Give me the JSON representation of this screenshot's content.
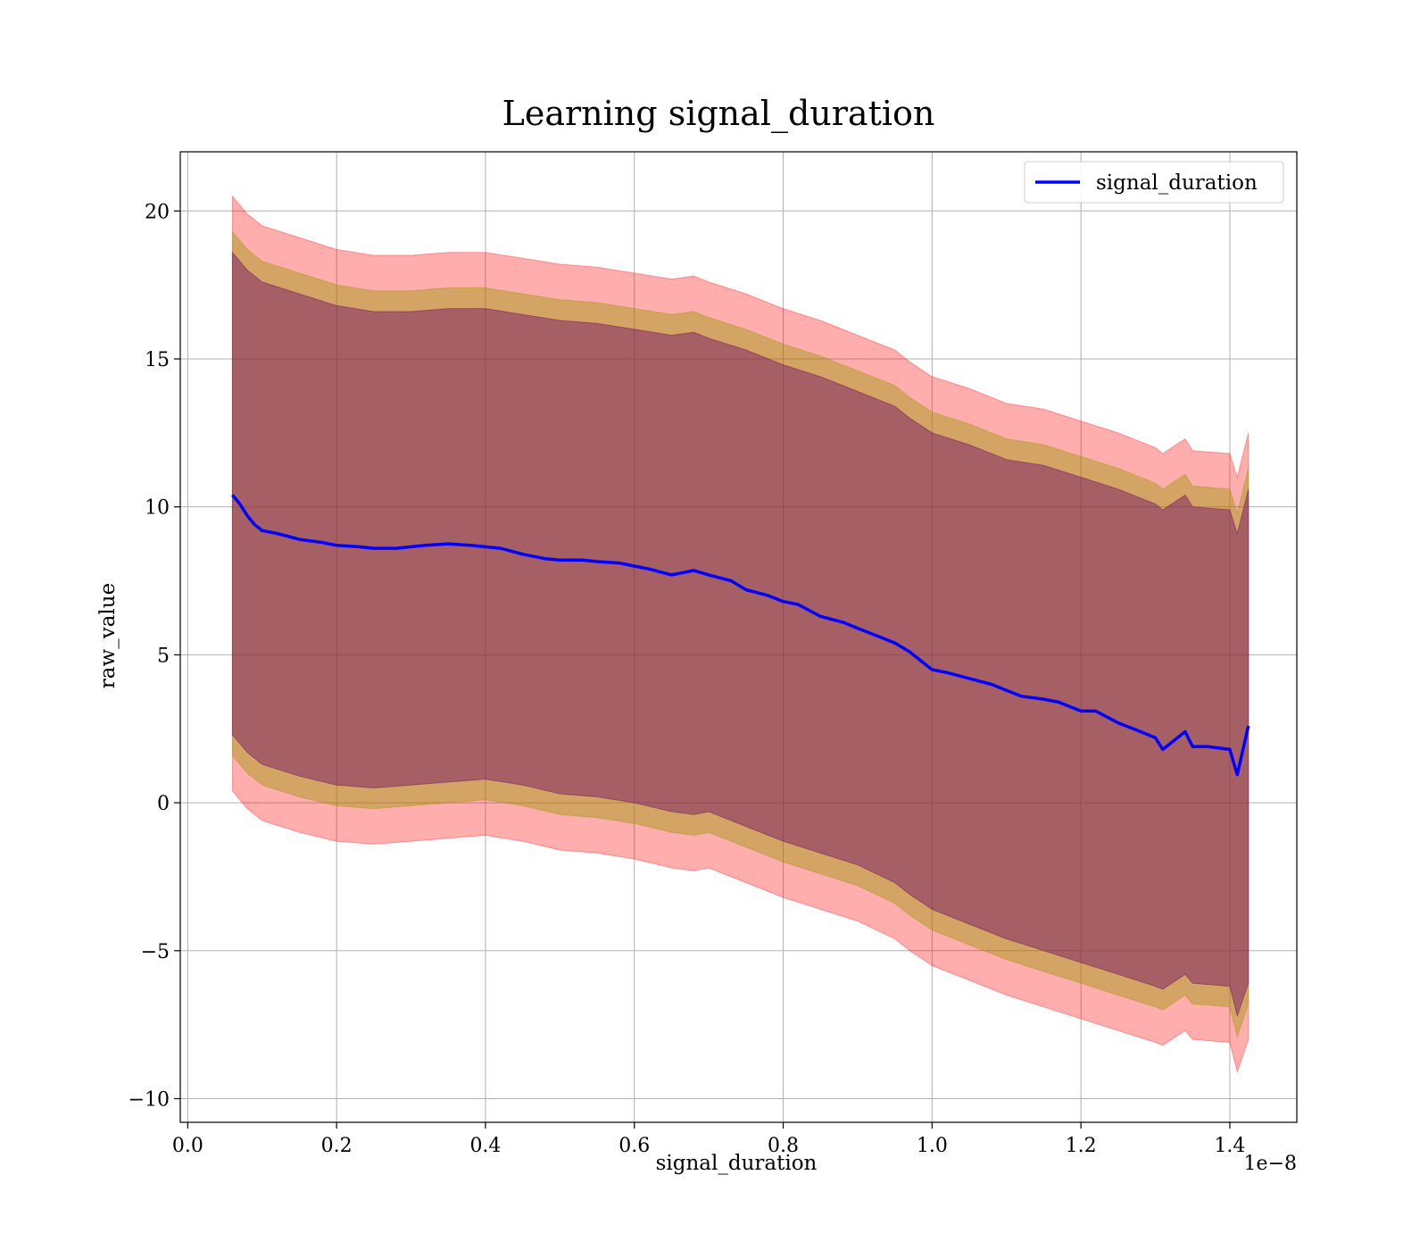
{
  "chart_data": {
    "type": "line",
    "title": "Learning signal_duration",
    "xlabel": "signal_duration",
    "ylabel": "raw_value",
    "x_offset_text": "1e−8",
    "xlim": [
      -0.01,
      1.49
    ],
    "ylim": [
      -10.8,
      22
    ],
    "x_ticks": [
      0.0,
      0.2,
      0.4,
      0.6,
      0.8,
      1.0,
      1.2,
      1.4
    ],
    "x_tick_labels": [
      "0.0",
      "0.2",
      "0.4",
      "0.6",
      "0.8",
      "1.0",
      "1.2",
      "1.4"
    ],
    "y_ticks": [
      -10,
      -5,
      0,
      5,
      10,
      15,
      20
    ],
    "y_tick_labels": [
      "−10",
      "−5",
      "0",
      "5",
      "10",
      "15",
      "20"
    ],
    "grid": true,
    "legend_position": "top-right",
    "series": [
      {
        "name": "signal_duration",
        "color": "#0000ff",
        "x": [
          0.06,
          0.07,
          0.08,
          0.09,
          0.1,
          0.12,
          0.15,
          0.18,
          0.2,
          0.23,
          0.25,
          0.28,
          0.3,
          0.32,
          0.35,
          0.38,
          0.4,
          0.42,
          0.45,
          0.48,
          0.5,
          0.53,
          0.55,
          0.58,
          0.6,
          0.62,
          0.65,
          0.68,
          0.7,
          0.73,
          0.75,
          0.78,
          0.8,
          0.82,
          0.85,
          0.88,
          0.9,
          0.93,
          0.95,
          0.97,
          1.0,
          1.02,
          1.05,
          1.08,
          1.1,
          1.12,
          1.15,
          1.17,
          1.2,
          1.22,
          1.25,
          1.28,
          1.3,
          1.31,
          1.32,
          1.34,
          1.35,
          1.37,
          1.4,
          1.41,
          1.425
        ],
        "values": [
          10.4,
          10.1,
          9.7,
          9.4,
          9.2,
          9.1,
          8.9,
          8.8,
          8.7,
          8.65,
          8.6,
          8.6,
          8.65,
          8.7,
          8.75,
          8.7,
          8.65,
          8.6,
          8.4,
          8.25,
          8.2,
          8.2,
          8.15,
          8.1,
          8.0,
          7.9,
          7.7,
          7.85,
          7.7,
          7.5,
          7.2,
          7.0,
          6.8,
          6.7,
          6.3,
          6.1,
          5.9,
          5.6,
          5.4,
          5.1,
          4.5,
          4.4,
          4.2,
          4.0,
          3.8,
          3.6,
          3.5,
          3.4,
          3.1,
          3.1,
          2.7,
          2.4,
          2.2,
          1.8,
          2.0,
          2.4,
          1.9,
          1.9,
          1.8,
          0.95,
          2.6
        ]
      }
    ],
    "bands": [
      {
        "color": "#ff0000",
        "opacity": 0.32,
        "x": [
          0.06,
          0.07,
          0.08,
          0.1,
          0.15,
          0.2,
          0.25,
          0.3,
          0.35,
          0.4,
          0.45,
          0.5,
          0.55,
          0.6,
          0.65,
          0.68,
          0.7,
          0.75,
          0.8,
          0.85,
          0.9,
          0.95,
          0.97,
          1.0,
          1.05,
          1.1,
          1.15,
          1.2,
          1.25,
          1.3,
          1.31,
          1.34,
          1.35,
          1.4,
          1.41,
          1.425
        ],
        "upper": [
          20.5,
          20.2,
          19.9,
          19.5,
          19.1,
          18.7,
          18.5,
          18.5,
          18.6,
          18.6,
          18.4,
          18.2,
          18.1,
          17.9,
          17.7,
          17.8,
          17.6,
          17.2,
          16.7,
          16.3,
          15.8,
          15.3,
          14.9,
          14.4,
          14.0,
          13.5,
          13.3,
          12.9,
          12.5,
          12.0,
          11.8,
          12.3,
          11.9,
          11.8,
          11.0,
          12.5
        ],
        "lower": [
          0.4,
          0.1,
          -0.2,
          -0.6,
          -1.0,
          -1.3,
          -1.4,
          -1.3,
          -1.2,
          -1.1,
          -1.3,
          -1.6,
          -1.7,
          -1.9,
          -2.2,
          -2.3,
          -2.2,
          -2.7,
          -3.2,
          -3.6,
          -4.0,
          -4.6,
          -5.0,
          -5.5,
          -6.0,
          -6.5,
          -6.9,
          -7.3,
          -7.7,
          -8.1,
          -8.2,
          -7.7,
          -8.0,
          -8.1,
          -9.1,
          -8.0
        ]
      },
      {
        "color": "#999900",
        "opacity": 0.42,
        "x": [
          0.06,
          0.07,
          0.08,
          0.1,
          0.15,
          0.2,
          0.25,
          0.3,
          0.35,
          0.4,
          0.45,
          0.5,
          0.55,
          0.6,
          0.65,
          0.68,
          0.7,
          0.75,
          0.8,
          0.85,
          0.9,
          0.95,
          0.97,
          1.0,
          1.05,
          1.1,
          1.15,
          1.2,
          1.25,
          1.3,
          1.31,
          1.34,
          1.35,
          1.4,
          1.41,
          1.425
        ],
        "upper": [
          19.3,
          19.0,
          18.7,
          18.3,
          17.9,
          17.5,
          17.3,
          17.3,
          17.4,
          17.4,
          17.2,
          17.0,
          16.9,
          16.7,
          16.5,
          16.6,
          16.4,
          16.0,
          15.5,
          15.1,
          14.6,
          14.1,
          13.7,
          13.2,
          12.8,
          12.3,
          12.1,
          11.7,
          11.3,
          10.8,
          10.6,
          11.1,
          10.7,
          10.6,
          9.8,
          11.3
        ],
        "lower": [
          1.6,
          1.3,
          1.0,
          0.6,
          0.2,
          -0.1,
          -0.2,
          -0.1,
          0.0,
          0.1,
          -0.1,
          -0.4,
          -0.5,
          -0.7,
          -1.0,
          -1.1,
          -1.0,
          -1.5,
          -2.0,
          -2.4,
          -2.8,
          -3.4,
          -3.8,
          -4.3,
          -4.8,
          -5.3,
          -5.7,
          -6.1,
          -6.5,
          -6.9,
          -7.0,
          -6.5,
          -6.8,
          -6.9,
          -7.9,
          -6.8
        ]
      },
      {
        "color": "#660066",
        "opacity": 0.42,
        "x": [
          0.06,
          0.07,
          0.08,
          0.1,
          0.15,
          0.2,
          0.25,
          0.3,
          0.35,
          0.4,
          0.45,
          0.5,
          0.55,
          0.6,
          0.65,
          0.68,
          0.7,
          0.75,
          0.8,
          0.85,
          0.9,
          0.95,
          0.97,
          1.0,
          1.05,
          1.1,
          1.15,
          1.2,
          1.25,
          1.3,
          1.31,
          1.34,
          1.35,
          1.4,
          1.41,
          1.425
        ],
        "upper": [
          18.6,
          18.3,
          18.0,
          17.6,
          17.2,
          16.8,
          16.6,
          16.6,
          16.7,
          16.7,
          16.5,
          16.3,
          16.2,
          16.0,
          15.8,
          15.9,
          15.7,
          15.3,
          14.8,
          14.4,
          13.9,
          13.4,
          13.0,
          12.5,
          12.1,
          11.6,
          11.4,
          11.0,
          10.6,
          10.1,
          9.9,
          10.4,
          10.0,
          9.9,
          9.1,
          10.6
        ],
        "lower": [
          2.3,
          2.0,
          1.7,
          1.3,
          0.9,
          0.6,
          0.5,
          0.6,
          0.7,
          0.8,
          0.6,
          0.3,
          0.2,
          0.0,
          -0.3,
          -0.4,
          -0.3,
          -0.8,
          -1.3,
          -1.7,
          -2.1,
          -2.7,
          -3.1,
          -3.6,
          -4.1,
          -4.6,
          -5.0,
          -5.4,
          -5.8,
          -6.2,
          -6.3,
          -5.8,
          -6.1,
          -6.2,
          -7.2,
          -6.1
        ]
      }
    ]
  }
}
